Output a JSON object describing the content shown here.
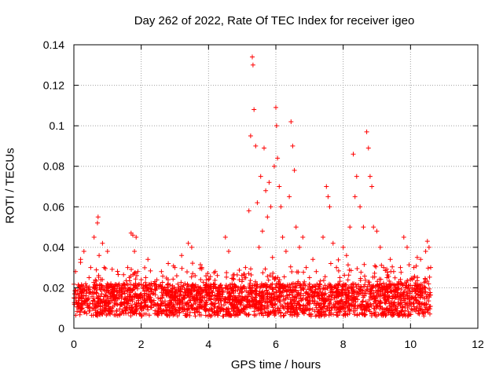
{
  "chart_data": {
    "type": "scatter",
    "title": "Day 262 of 2022, Rate Of TEC Index for receiver igeo",
    "xlabel": "GPS time / hours",
    "ylabel": "ROTI / TECUs",
    "xlim": [
      0,
      12
    ],
    "ylim": [
      0,
      0.14
    ],
    "xticks": [
      0,
      2,
      4,
      6,
      8,
      10,
      12
    ],
    "xtick_labels": [
      "0",
      "2",
      "4",
      "6",
      "8",
      "10",
      "12"
    ],
    "yticks": [
      0,
      0.02,
      0.04,
      0.06,
      0.08,
      0.1,
      0.12,
      0.14
    ],
    "ytick_labels": [
      "0",
      "0.02",
      "0.04",
      "0.06",
      "0.08",
      "0.1",
      "0.12",
      "0.14"
    ],
    "grid": true,
    "marker": "+",
    "color": "#ff0000",
    "series": [
      {
        "name": "ROTI",
        "x": [
          0.0,
          0.05,
          0.1,
          0.15,
          0.2,
          0.25,
          0.3,
          0.35,
          0.4,
          0.45,
          0.5,
          0.55,
          0.6,
          0.65,
          0.7,
          0.72,
          0.75,
          0.8,
          0.85,
          0.9,
          0.95,
          1.0,
          1.1,
          1.2,
          1.3,
          1.4,
          1.5,
          1.6,
          1.7,
          1.75,
          1.8,
          1.85,
          1.9,
          2.0,
          2.1,
          2.2,
          2.3,
          2.4,
          2.5,
          2.6,
          2.7,
          2.8,
          2.9,
          3.0,
          3.1,
          3.2,
          3.3,
          3.4,
          3.5,
          3.6,
          3.7,
          3.8,
          3.9,
          4.0,
          4.1,
          4.2,
          4.3,
          4.4,
          4.5,
          4.6,
          4.7,
          4.8,
          4.9,
          5.0,
          5.1,
          5.2,
          5.25,
          5.3,
          5.32,
          5.35,
          5.4,
          5.45,
          5.5,
          5.55,
          5.6,
          5.65,
          5.7,
          5.75,
          5.8,
          5.85,
          5.9,
          5.95,
          6.0,
          6.02,
          6.05,
          6.1,
          6.15,
          6.2,
          6.3,
          6.4,
          6.45,
          6.5,
          6.55,
          6.6,
          6.7,
          6.8,
          6.9,
          7.0,
          7.1,
          7.2,
          7.3,
          7.4,
          7.5,
          7.55,
          7.6,
          7.7,
          7.8,
          7.9,
          8.0,
          8.1,
          8.2,
          8.3,
          8.35,
          8.4,
          8.5,
          8.6,
          8.7,
          8.75,
          8.8,
          8.85,
          8.9,
          9.0,
          9.1,
          9.2,
          9.3,
          9.4,
          9.5,
          9.6,
          9.7,
          9.8,
          9.9,
          10.0,
          10.1,
          10.2,
          10.3,
          10.4,
          10.45,
          10.5,
          10.55,
          10.6
        ],
        "y": [
          0.015,
          0.028,
          0.012,
          0.02,
          0.034,
          0.016,
          0.038,
          0.022,
          0.014,
          0.025,
          0.03,
          0.018,
          0.045,
          0.02,
          0.052,
          0.055,
          0.036,
          0.024,
          0.042,
          0.03,
          0.016,
          0.038,
          0.022,
          0.014,
          0.018,
          0.02,
          0.012,
          0.03,
          0.047,
          0.046,
          0.038,
          0.045,
          0.028,
          0.024,
          0.016,
          0.034,
          0.018,
          0.022,
          0.015,
          0.028,
          0.02,
          0.024,
          0.016,
          0.03,
          0.018,
          0.036,
          0.022,
          0.042,
          0.04,
          0.026,
          0.018,
          0.03,
          0.02,
          0.024,
          0.016,
          0.028,
          0.02,
          0.018,
          0.045,
          0.038,
          0.022,
          0.014,
          0.016,
          0.024,
          0.03,
          0.058,
          0.095,
          0.134,
          0.13,
          0.108,
          0.09,
          0.062,
          0.04,
          0.075,
          0.048,
          0.089,
          0.068,
          0.055,
          0.072,
          0.06,
          0.035,
          0.08,
          0.109,
          0.1,
          0.084,
          0.07,
          0.06,
          0.045,
          0.038,
          0.065,
          0.102,
          0.09,
          0.078,
          0.05,
          0.04,
          0.045,
          0.03,
          0.025,
          0.034,
          0.028,
          0.022,
          0.045,
          0.07,
          0.065,
          0.06,
          0.042,
          0.03,
          0.025,
          0.04,
          0.036,
          0.05,
          0.086,
          0.065,
          0.075,
          0.06,
          0.05,
          0.097,
          0.089,
          0.075,
          0.07,
          0.05,
          0.048,
          0.04,
          0.03,
          0.025,
          0.034,
          0.028,
          0.022,
          0.03,
          0.045,
          0.04,
          0.024,
          0.03,
          0.035,
          0.034,
          0.02,
          0.038,
          0.043,
          0.04,
          0.03
        ]
      }
    ]
  }
}
